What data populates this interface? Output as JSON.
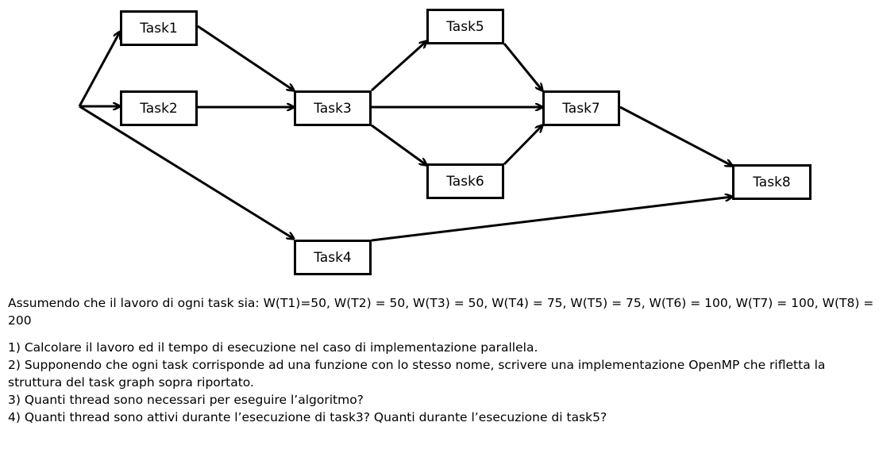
{
  "graph": {
    "tasks": [
      {
        "id": "task1",
        "label": "Task1"
      },
      {
        "id": "task2",
        "label": "Task2"
      },
      {
        "id": "task3",
        "label": "Task3"
      },
      {
        "id": "task4",
        "label": "Task4"
      },
      {
        "id": "task5",
        "label": "Task5"
      },
      {
        "id": "task6",
        "label": "Task6"
      },
      {
        "id": "task7",
        "label": "Task7"
      },
      {
        "id": "task8",
        "label": "Task8"
      }
    ],
    "edges": [
      {
        "from": "source",
        "to": "task1"
      },
      {
        "from": "source",
        "to": "task2"
      },
      {
        "from": "source",
        "to": "task4"
      },
      {
        "from": "task1",
        "to": "task3"
      },
      {
        "from": "task2",
        "to": "task3"
      },
      {
        "from": "task3",
        "to": "task5"
      },
      {
        "from": "task3",
        "to": "task6"
      },
      {
        "from": "task3",
        "to": "task7"
      },
      {
        "from": "task5",
        "to": "task7"
      },
      {
        "from": "task6",
        "to": "task7"
      },
      {
        "from": "task7",
        "to": "task8"
      },
      {
        "from": "task4",
        "to": "task8"
      }
    ]
  },
  "text": {
    "intro": "Assumendo che il lavoro di ogni task sia: W(T1)=50, W(T2) = 50, W(T3) = 50, W(T4) = 75, W(T5) = 75,  W(T6) = 100, W(T7) = 100, W(T8) = 200",
    "questions": [
      "1) Calcolare il lavoro ed il tempo di esecuzione nel caso di implementazione parallela.",
      "2) Supponendo che ogni task corrisponde ad una funzione con lo stesso nome, scrivere una implementazione OpenMP che rifletta la struttura del task graph sopra riportato.",
      "3) Quanti thread sono necessari per eseguire l’algoritmo?",
      "4) Quanti thread sono attivi durante l’esecuzione di task3? Quanti durante l’esecuzione di task5?"
    ]
  }
}
